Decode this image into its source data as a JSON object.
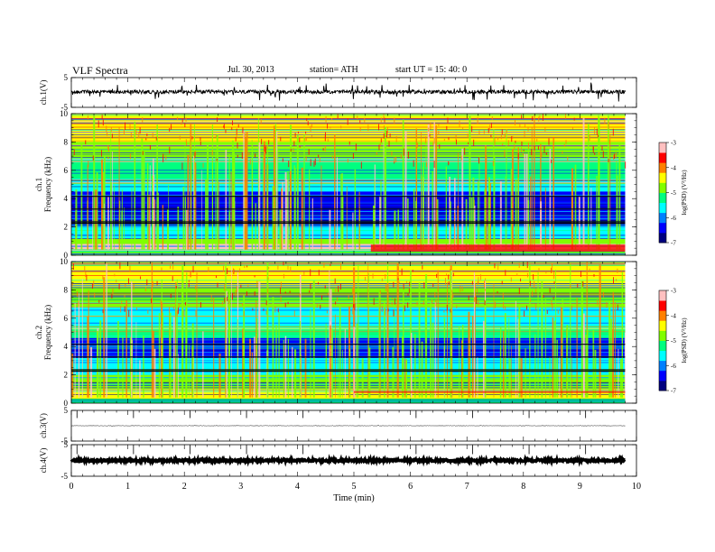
{
  "header": {
    "title": "VLF  Spectra",
    "date": "Jul.  30,  2013",
    "station": "station= ATH",
    "start": "start  UT  =   15: 40: 0"
  },
  "chart_data": [
    {
      "type": "line",
      "panel": "ch1-waveform",
      "ylabel": "ch.1(V)",
      "ylim": [
        -5,
        5
      ],
      "yticks": [
        "5",
        "-5"
      ],
      "baseline": 0.2,
      "amplitude": 0.4,
      "note": "dense broadband waveform with frequent spikes"
    },
    {
      "type": "heatmap",
      "panel": "ch1-spectrogram",
      "ylabel": "ch.1\nFrequency  (kHz)",
      "ylim": [
        0,
        10
      ],
      "yticks": [
        "0",
        "2",
        "4",
        "6",
        "8",
        "10"
      ],
      "colorbar": {
        "label": "log(PSD) (V²/Hz)",
        "range": [
          -7,
          -3
        ],
        "ticks": [
          "-3",
          "-4",
          "-5",
          "-6",
          "-7"
        ]
      },
      "bands": [
        {
          "f": [
            0,
            0.3
          ],
          "level": -5.0
        },
        {
          "f": [
            0.3,
            0.8
          ],
          "level": -3.4
        },
        {
          "f": [
            0.8,
            1.2
          ],
          "level": -5.0
        },
        {
          "f": [
            1.2,
            2.2
          ],
          "level": -5.8
        },
        {
          "f": [
            2.2,
            2.5
          ],
          "level": -7.0
        },
        {
          "f": [
            2.5,
            3.5
          ],
          "level": -6.4
        },
        {
          "f": [
            3.5,
            4.5
          ],
          "level": -6.6
        },
        {
          "f": [
            4.5,
            5.4
          ],
          "level": -5.6
        },
        {
          "f": [
            5.4,
            6.8
          ],
          "level": -5.2
        },
        {
          "f": [
            6.8,
            8.0
          ],
          "level": -4.8
        },
        {
          "f": [
            8.0,
            10.0
          ],
          "level": -4.4
        }
      ]
    },
    {
      "type": "heatmap",
      "panel": "ch2-spectrogram",
      "ylabel": "ch.2\nFrequency  (kHz)",
      "ylim": [
        0,
        10
      ],
      "yticks": [
        "0",
        "2",
        "4",
        "6",
        "8",
        "10"
      ],
      "colorbar": {
        "label": "log(PSD) (V²/Hz)",
        "range": [
          -7,
          -3
        ],
        "ticks": [
          "-3",
          "-4",
          "-5",
          "-6",
          "-7"
        ]
      },
      "bands": [
        {
          "f": [
            0,
            0.3
          ],
          "level": -5.2
        },
        {
          "f": [
            0.3,
            1.0
          ],
          "level": -4.6
        },
        {
          "f": [
            1.0,
            2.0
          ],
          "level": -4.8
        },
        {
          "f": [
            2.0,
            3.2
          ],
          "level": -5.6
        },
        {
          "f": [
            3.2,
            4.6
          ],
          "level": -6.4
        },
        {
          "f": [
            4.6,
            5.2
          ],
          "level": -5.2
        },
        {
          "f": [
            5.2,
            6.8
          ],
          "level": -5.5
        },
        {
          "f": [
            6.8,
            8.2
          ],
          "level": -4.9
        },
        {
          "f": [
            8.2,
            10.0
          ],
          "level": -4.5
        }
      ]
    },
    {
      "type": "line",
      "panel": "ch3-waveform",
      "ylabel": "ch.3(V)",
      "ylim": [
        -5,
        5
      ],
      "yticks": [
        "5",
        "-5"
      ],
      "baseline": 0,
      "amplitude": 0.05
    },
    {
      "type": "line",
      "panel": "ch4-waveform",
      "ylabel": "ch.4(V)",
      "ylim": [
        -5,
        5
      ],
      "yticks": [
        "5",
        "-5"
      ],
      "baseline": 0,
      "amplitude": 0.25
    }
  ],
  "xaxis": {
    "label": "Time  (min)",
    "range": [
      0,
      10
    ],
    "data_end": 9.8,
    "ticks": [
      "0",
      "1",
      "2",
      "3",
      "4",
      "5",
      "6",
      "7",
      "8",
      "9",
      "10"
    ]
  },
  "colors": {
    "colormap": [
      "#00007f",
      "#0000ff",
      "#0080ff",
      "#00ffff",
      "#00ff80",
      "#80ff00",
      "#ffff00",
      "#ff8000",
      "#ff0000",
      "#ffc0c0"
    ]
  }
}
